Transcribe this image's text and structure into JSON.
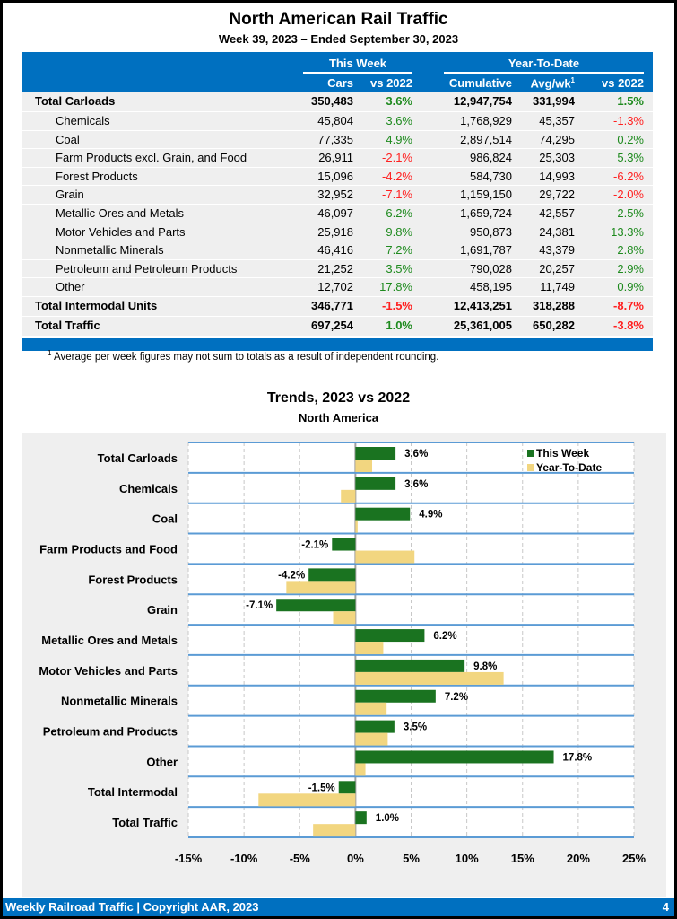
{
  "header": {
    "title": "North American Rail Traffic",
    "subtitle": "Week 39, 2023 – Ended September 30, 2023"
  },
  "table": {
    "group_this_week": "This Week",
    "group_ytd": "Year-To-Date",
    "columns": [
      "Cars",
      "vs 2022",
      "Cumulative",
      "Avg/wk",
      "vs 2022"
    ],
    "avg_superscript": "1",
    "rows": [
      {
        "label": "Total Carloads",
        "bold": true,
        "cars": "350,483",
        "vs_week": "3.6%",
        "cumulative": "12,947,754",
        "avg_wk": "331,994",
        "vs_ytd": "1.5%"
      },
      {
        "label": "Chemicals",
        "bold": false,
        "cars": "45,804",
        "vs_week": "3.6%",
        "cumulative": "1,768,929",
        "avg_wk": "45,357",
        "vs_ytd": "-1.3%"
      },
      {
        "label": "Coal",
        "bold": false,
        "cars": "77,335",
        "vs_week": "4.9%",
        "cumulative": "2,897,514",
        "avg_wk": "74,295",
        "vs_ytd": "0.2%"
      },
      {
        "label": "Farm Products excl. Grain, and Food",
        "bold": false,
        "cars": "26,911",
        "vs_week": "-2.1%",
        "cumulative": "986,824",
        "avg_wk": "25,303",
        "vs_ytd": "5.3%"
      },
      {
        "label": "Forest Products",
        "bold": false,
        "cars": "15,096",
        "vs_week": "-4.2%",
        "cumulative": "584,730",
        "avg_wk": "14,993",
        "vs_ytd": "-6.2%"
      },
      {
        "label": "Grain",
        "bold": false,
        "cars": "32,952",
        "vs_week": "-7.1%",
        "cumulative": "1,159,150",
        "avg_wk": "29,722",
        "vs_ytd": "-2.0%"
      },
      {
        "label": "Metallic Ores and Metals",
        "bold": false,
        "cars": "46,097",
        "vs_week": "6.2%",
        "cumulative": "1,659,724",
        "avg_wk": "42,557",
        "vs_ytd": "2.5%"
      },
      {
        "label": "Motor Vehicles and Parts",
        "bold": false,
        "cars": "25,918",
        "vs_week": "9.8%",
        "cumulative": "950,873",
        "avg_wk": "24,381",
        "vs_ytd": "13.3%"
      },
      {
        "label": "Nonmetallic Minerals",
        "bold": false,
        "cars": "46,416",
        "vs_week": "7.2%",
        "cumulative": "1,691,787",
        "avg_wk": "43,379",
        "vs_ytd": "2.8%"
      },
      {
        "label": "Petroleum and Petroleum Products",
        "bold": false,
        "cars": "21,252",
        "vs_week": "3.5%",
        "cumulative": "790,028",
        "avg_wk": "20,257",
        "vs_ytd": "2.9%"
      },
      {
        "label": "Other",
        "bold": false,
        "cars": "12,702",
        "vs_week": "17.8%",
        "cumulative": "458,195",
        "avg_wk": "11,749",
        "vs_ytd": "0.9%"
      },
      {
        "label": "Total Intermodal Units",
        "bold": true,
        "cars": "346,771",
        "vs_week": "-1.5%",
        "cumulative": "12,413,251",
        "avg_wk": "318,288",
        "vs_ytd": "-8.7%"
      },
      {
        "label": "Total Traffic",
        "bold": true,
        "cars": "697,254",
        "vs_week": "1.0%",
        "cumulative": "25,361,005",
        "avg_wk": "650,282",
        "vs_ytd": "-3.8%"
      }
    ]
  },
  "footnote": {
    "marker": "1",
    "text": "Average per week figures may not sum to totals as a result of independent rounding."
  },
  "chart_data": {
    "type": "bar",
    "orientation": "horizontal",
    "title": "Trends, 2023 vs 2022",
    "subtitle": "North America",
    "categories": [
      "Total Carloads",
      "Chemicals",
      "Coal",
      "Farm Products and Food",
      "Forest Products",
      "Grain",
      "Metallic Ores and Metals",
      "Motor Vehicles and Parts",
      "Nonmetallic Minerals",
      "Petroleum and Products",
      "Other",
      "Total Intermodal",
      "Total Traffic"
    ],
    "series": [
      {
        "name": "This Week",
        "color": "#1a7320",
        "values": [
          3.6,
          3.6,
          4.9,
          -2.1,
          -4.2,
          -7.1,
          6.2,
          9.8,
          7.2,
          3.5,
          17.8,
          -1.5,
          1.0
        ],
        "data_labels": [
          "3.6%",
          "3.6%",
          "4.9%",
          "-2.1%",
          "-4.2%",
          "-7.1%",
          "6.2%",
          "9.8%",
          "7.2%",
          "3.5%",
          "17.8%",
          "-1.5%",
          "1.0%"
        ]
      },
      {
        "name": "Year-To-Date",
        "color": "#f2d680",
        "values": [
          1.5,
          -1.3,
          0.2,
          5.3,
          -6.2,
          -2.0,
          2.5,
          13.3,
          2.8,
          2.9,
          0.9,
          -8.7,
          -3.8
        ]
      }
    ],
    "xlim": [
      -15,
      25
    ],
    "xticks": [
      -15,
      -10,
      -5,
      0,
      5,
      10,
      15,
      20,
      25
    ],
    "xtick_labels": [
      "-15%",
      "-10%",
      "-5%",
      "0%",
      "5%",
      "10%",
      "15%",
      "20%",
      "25%"
    ],
    "xlabel": "",
    "ylabel": "",
    "grid": true,
    "legend_position": "top-right"
  },
  "footer": {
    "left": "Weekly Railroad Traffic | Copyright AAR, 2023",
    "page_number": "4"
  }
}
